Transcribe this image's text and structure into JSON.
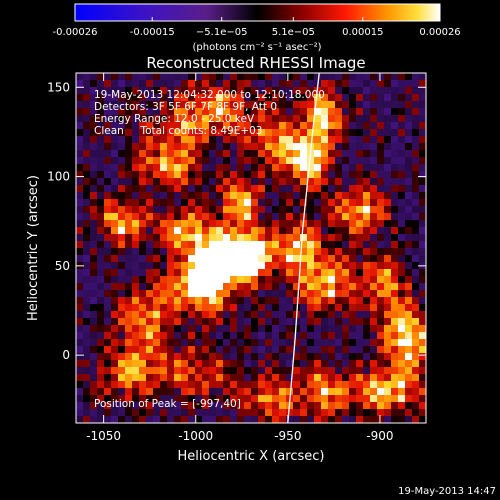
{
  "chart_data": {
    "type": "heatmap",
    "title": "Reconstructed RHESSI Image",
    "xlabel": "Heliocentric X (arcsec)",
    "ylabel": "Heliocentric Y (arcsec)",
    "xlim": [
      -1065,
      -875
    ],
    "ylim": [
      -38,
      158
    ],
    "x_ticks": [
      -1050,
      -1000,
      -950,
      -900
    ],
    "x_tick_labels": [
      "-1050",
      "-1000",
      "-950",
      "-900"
    ],
    "y_ticks": [
      0,
      50,
      100,
      150
    ],
    "y_tick_labels": [
      "0",
      "50",
      "100",
      "150"
    ],
    "colorbar": {
      "colormap": "blue-purple-red-yellow-white",
      "range": [
        -0.00026,
        0.00026
      ],
      "ticks": [
        -0.00026,
        -0.00015,
        -5.1e-05,
        5.1e-05,
        0.00015,
        0.00026
      ],
      "tick_labels": [
        "-0.00026",
        "-0.00015",
        "−5.1e−05",
        "5.1e−05",
        "0.00015",
        "0.00026"
      ],
      "unit_label": "(photons cm⁻² s⁻¹ asec⁻²)"
    },
    "info_lines": [
      "19-May-2013 12:04:32.000 to 12:10:18.000",
      "Detectors: 3F 5F 6F 7F 8F 9F, Att 0",
      "Energy Range: 12.0 - 25.0 keV",
      "Clean     Total counts: 8.49E+03"
    ],
    "peak_annotation": "Position of Peak = [-997,40]",
    "peak_position": [
      -997,
      40
    ],
    "limb_curve": {
      "x": [
        -933,
        -936,
        -939,
        -942,
        -944,
        -946,
        -948,
        -950
      ],
      "y": [
        158,
        130,
        100,
        70,
        40,
        10,
        -15,
        -38
      ]
    },
    "blobs": [
      {
        "x": -1040,
        "y": 75,
        "sx": 10,
        "sy": 9,
        "v": 1.0
      },
      {
        "x": -1028,
        "y": 20,
        "sx": 10,
        "sy": 12,
        "v": 0.9
      },
      {
        "x": -1035,
        "y": -10,
        "sx": 12,
        "sy": 10,
        "v": 0.8
      },
      {
        "x": -1015,
        "y": 105,
        "sx": 12,
        "sy": 8,
        "v": 0.9
      },
      {
        "x": -1010,
        "y": 125,
        "sx": 14,
        "sy": 8,
        "v": 0.7
      },
      {
        "x": -1005,
        "y": 70,
        "sx": 10,
        "sy": 8,
        "v": 0.9
      },
      {
        "x": -997,
        "y": 40,
        "sx": 12,
        "sy": 12,
        "v": 1.4
      },
      {
        "x": -985,
        "y": 55,
        "sx": 10,
        "sy": 10,
        "v": 1.3
      },
      {
        "x": -970,
        "y": 55,
        "sx": 9,
        "sy": 9,
        "v": 1.4
      },
      {
        "x": -975,
        "y": 85,
        "sx": 8,
        "sy": 10,
        "v": 1.0
      },
      {
        "x": -990,
        "y": 140,
        "sx": 14,
        "sy": 9,
        "v": 0.9
      },
      {
        "x": -960,
        "y": 120,
        "sx": 10,
        "sy": 10,
        "v": 0.8
      },
      {
        "x": -940,
        "y": 110,
        "sx": 8,
        "sy": 12,
        "v": 1.3
      },
      {
        "x": -930,
        "y": 135,
        "sx": 8,
        "sy": 10,
        "v": 1.1
      },
      {
        "x": -945,
        "y": 60,
        "sx": 9,
        "sy": 10,
        "v": 1.0
      },
      {
        "x": -930,
        "y": 40,
        "sx": 9,
        "sy": 12,
        "v": 1.0
      },
      {
        "x": -910,
        "y": 80,
        "sx": 10,
        "sy": 9,
        "v": 1.0
      },
      {
        "x": -900,
        "y": 40,
        "sx": 10,
        "sy": 10,
        "v": 0.9
      },
      {
        "x": -885,
        "y": 10,
        "sx": 10,
        "sy": 12,
        "v": 1.2
      },
      {
        "x": -895,
        "y": -20,
        "sx": 12,
        "sy": 9,
        "v": 1.0
      },
      {
        "x": -930,
        "y": -20,
        "sx": 12,
        "sy": 10,
        "v": 0.9
      },
      {
        "x": -960,
        "y": -25,
        "sx": 10,
        "sy": 8,
        "v": 0.8
      },
      {
        "x": -1000,
        "y": -10,
        "sx": 14,
        "sy": 10,
        "v": 0.7
      }
    ]
  },
  "footer_timestamp": "19-May-2013 14:47"
}
